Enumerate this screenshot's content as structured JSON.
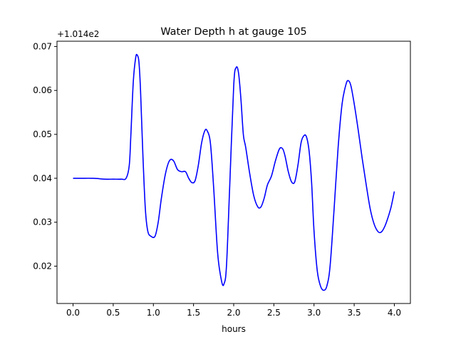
{
  "chart_data": {
    "type": "line",
    "title": "Water Depth h at gauge 105",
    "xlabel": "hours",
    "ylabel": "",
    "offset_text": "+1.014e2",
    "xlim": [
      -0.2,
      4.2
    ],
    "ylim": [
      0.0115,
      0.0712
    ],
    "x_ticks": [
      0.0,
      0.5,
      1.0,
      1.5,
      2.0,
      2.5,
      3.0,
      3.5,
      4.0
    ],
    "x_tick_labels": [
      "0.0",
      "0.5",
      "1.0",
      "1.5",
      "2.0",
      "2.5",
      "3.0",
      "3.5",
      "4.0"
    ],
    "y_ticks": [
      0.02,
      0.03,
      0.04,
      0.05,
      0.06,
      0.07
    ],
    "y_tick_labels": [
      "0.02",
      "0.03",
      "0.04",
      "0.05",
      "0.06",
      "0.07"
    ],
    "grid": false,
    "series": [
      {
        "name": "",
        "color": "#0000ff",
        "x": [
          0.0,
          0.1,
          0.25,
          0.4,
          0.5,
          0.6,
          0.66,
          0.7,
          0.72,
          0.75,
          0.78,
          0.8,
          0.82,
          0.84,
          0.87,
          0.9,
          0.93,
          0.97,
          1.02,
          1.06,
          1.1,
          1.15,
          1.2,
          1.25,
          1.3,
          1.35,
          1.4,
          1.44,
          1.48,
          1.52,
          1.56,
          1.6,
          1.64,
          1.67,
          1.71,
          1.75,
          1.8,
          1.85,
          1.88,
          1.91,
          1.95,
          2.0,
          2.03,
          2.06,
          2.09,
          2.12,
          2.15,
          2.2,
          2.25,
          2.3,
          2.34,
          2.38,
          2.42,
          2.47,
          2.52,
          2.57,
          2.61,
          2.64,
          2.68,
          2.72,
          2.76,
          2.8,
          2.84,
          2.88,
          2.91,
          2.94,
          2.97,
          3.0,
          3.04,
          3.08,
          3.12,
          3.16,
          3.2,
          3.25,
          3.3,
          3.35,
          3.4,
          3.43,
          3.46,
          3.5,
          3.55,
          3.6,
          3.65,
          3.7,
          3.75,
          3.8,
          3.84,
          3.88,
          3.92,
          3.96,
          4.0
        ],
        "values": [
          0.04,
          0.04,
          0.04,
          0.0398,
          0.0398,
          0.0398,
          0.04,
          0.043,
          0.05,
          0.062,
          0.0675,
          0.068,
          0.0665,
          0.06,
          0.045,
          0.033,
          0.028,
          0.0268,
          0.0268,
          0.03,
          0.0355,
          0.041,
          0.044,
          0.044,
          0.042,
          0.0415,
          0.0415,
          0.04,
          0.039,
          0.0395,
          0.043,
          0.048,
          0.0508,
          0.0508,
          0.048,
          0.038,
          0.023,
          0.0165,
          0.016,
          0.02,
          0.038,
          0.061,
          0.0652,
          0.064,
          0.058,
          0.05,
          0.047,
          0.041,
          0.036,
          0.0335,
          0.0335,
          0.0355,
          0.0385,
          0.0405,
          0.044,
          0.0467,
          0.0467,
          0.045,
          0.0415,
          0.0392,
          0.0392,
          0.043,
          0.0482,
          0.0498,
          0.0492,
          0.046,
          0.039,
          0.028,
          0.019,
          0.0155,
          0.0145,
          0.0155,
          0.02,
          0.033,
          0.047,
          0.057,
          0.0615,
          0.0622,
          0.061,
          0.057,
          0.051,
          0.0445,
          0.0385,
          0.033,
          0.0295,
          0.0278,
          0.0278,
          0.029,
          0.031,
          0.0335,
          0.037
        ]
      }
    ]
  }
}
